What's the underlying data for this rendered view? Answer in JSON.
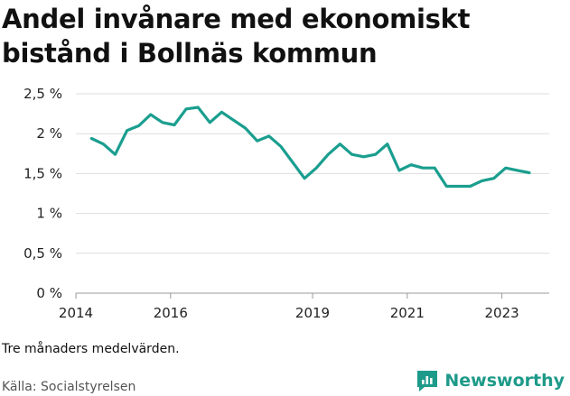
{
  "header": {
    "title": "Andel invånare med ekonomiskt bistånd i Bollnäs kommun"
  },
  "footer": {
    "note": "Tre månaders medelvärden.",
    "source": "Källa: Socialstyrelsen",
    "brand": "Newsworthy",
    "brand_icon": "newsworthy-logo-icon"
  },
  "colors": {
    "line": "#1a9e8f",
    "grid": "#dddddd",
    "brand": "#1e9a8a"
  },
  "chart_data": {
    "type": "line",
    "ylim": [
      0,
      2.5
    ],
    "xlim": [
      2014,
      2024
    ],
    "yticks": [
      0,
      0.5,
      1,
      1.5,
      2,
      2.5
    ],
    "ytick_labels": [
      "0 %",
      "0,5 %",
      "1 %",
      "1,5 %",
      "2 %",
      "2,5 %"
    ],
    "xticks": [
      2014,
      2016,
      2019,
      2021,
      2023
    ],
    "xtick_labels": [
      "2014",
      "2016",
      "2019",
      "2021",
      "2023"
    ],
    "grid": true,
    "series": [
      {
        "x": [
          2014.33,
          2014.58,
          2014.83,
          2015.08,
          2015.33,
          2015.58,
          2015.83,
          2016.08,
          2016.33,
          2016.58,
          2016.83,
          2017.08,
          2017.33,
          2017.58,
          2017.83,
          2018.08,
          2018.33,
          2018.58,
          2018.83,
          2019.08,
          2019.33,
          2019.58,
          2019.83,
          2020.08,
          2020.33,
          2020.58,
          2020.83,
          2021.08,
          2021.33,
          2021.58,
          2021.83,
          2022.08,
          2022.33,
          2022.58,
          2022.83,
          2023.08,
          2023.33,
          2023.58
        ],
        "values": [
          1.94,
          1.87,
          1.74,
          2.04,
          2.1,
          2.24,
          2.14,
          2.11,
          2.31,
          2.33,
          2.14,
          2.27,
          2.17,
          2.07,
          1.91,
          1.97,
          1.84,
          1.64,
          1.44,
          1.57,
          1.74,
          1.87,
          1.74,
          1.71,
          1.74,
          1.87,
          1.54,
          1.61,
          1.57,
          1.57,
          1.34,
          1.34,
          1.34,
          1.41,
          1.44,
          1.57,
          1.54,
          1.51
        ]
      }
    ]
  }
}
